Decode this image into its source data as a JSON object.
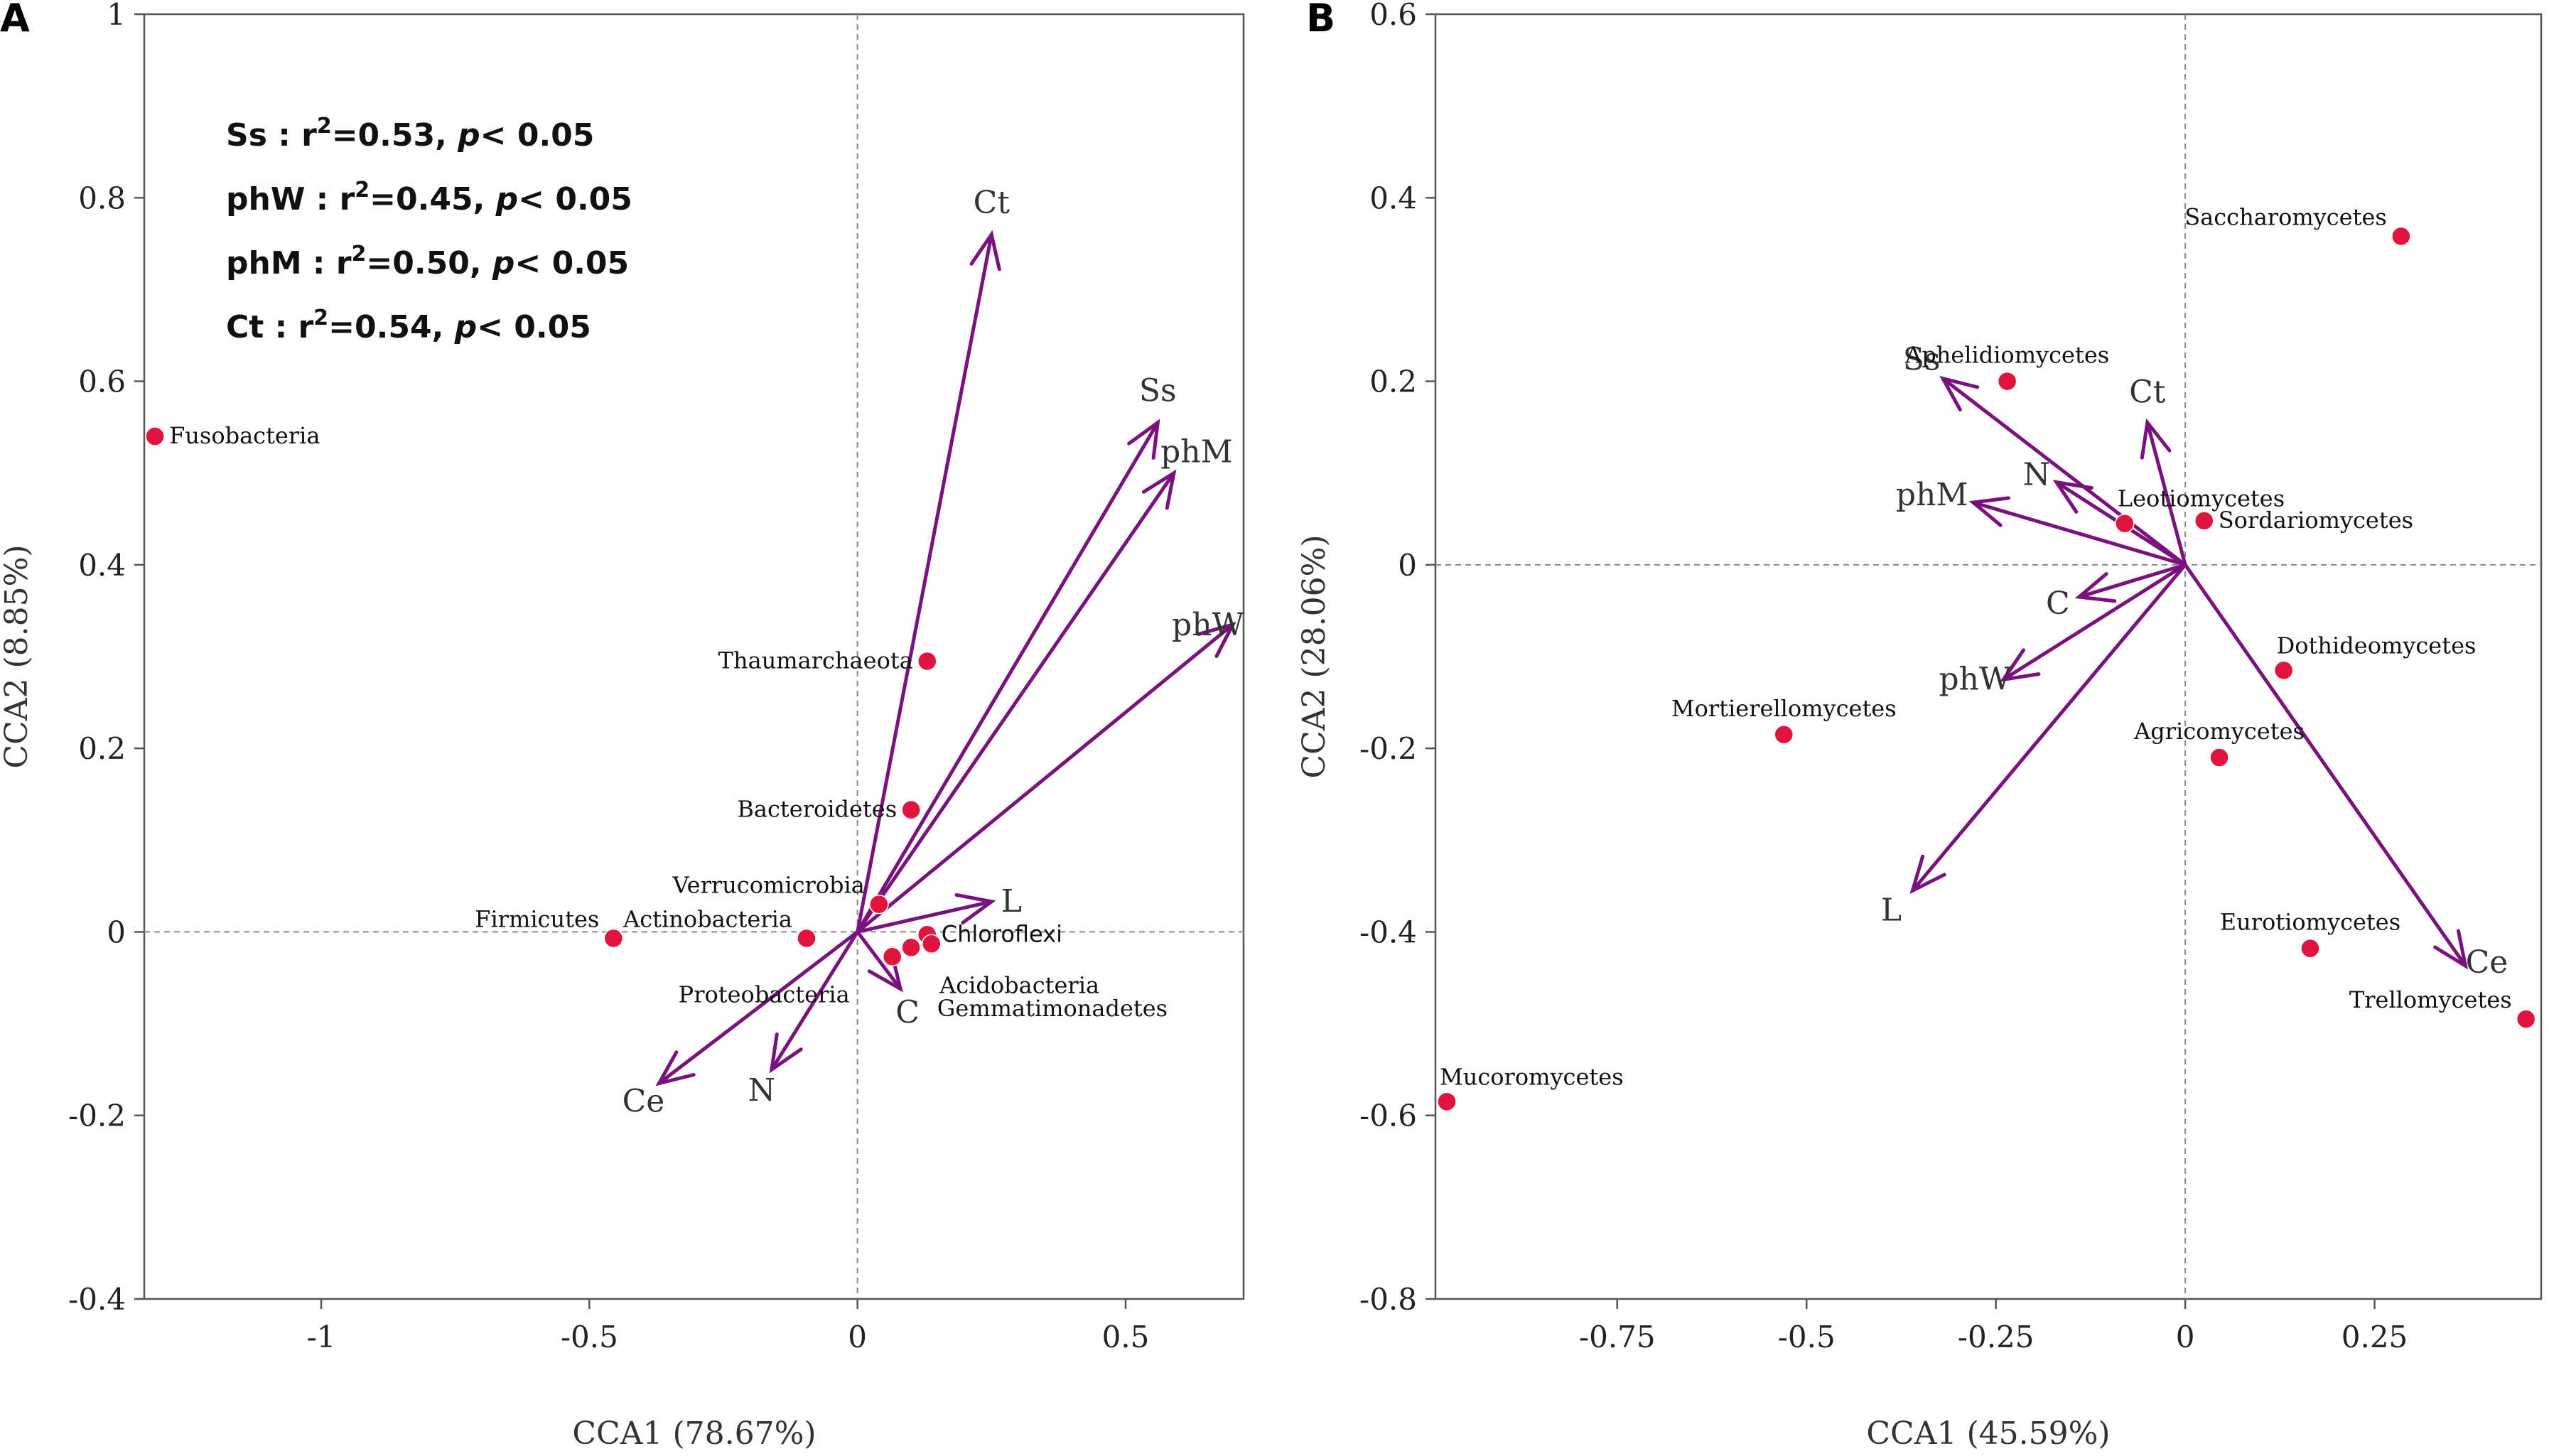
{
  "chart_data": [
    {
      "panel": "A",
      "type": "scatter",
      "subtype": "CCA biplot",
      "xlabel": "CCA1 (78.67%)",
      "ylabel": "CCA2 (8.85%)",
      "xlim": [
        -1.33,
        0.72
      ],
      "ylim": [
        -0.4,
        1.0
      ],
      "xticks": [
        -1,
        -0.5,
        0,
        0.5
      ],
      "xtick_labels": [
        "-1",
        "-0.5",
        "0",
        "0.5"
      ],
      "yticks": [
        -0.4,
        -0.2,
        0,
        0.2,
        0.4,
        0.6,
        0.8,
        1
      ],
      "ytick_labels": [
        "-0.4",
        "-0.2",
        "0",
        "0.2",
        "0.4",
        "0.6",
        "0.8",
        "1"
      ],
      "points": [
        {
          "label": "Fusobacteria",
          "x": -1.31,
          "y": 0.54,
          "anchor": "right"
        },
        {
          "label": "Thaumarchaeota",
          "x": 0.13,
          "y": 0.295,
          "anchor": "left"
        },
        {
          "label": "Bacteroidetes",
          "x": 0.1,
          "y": 0.133,
          "anchor": "left"
        },
        {
          "label": "Verrucomicrobia",
          "x": 0.04,
          "y": 0.03,
          "anchor": "above-left"
        },
        {
          "label": "Actinobacteria",
          "x": -0.095,
          "y": -0.007,
          "anchor": "above-left"
        },
        {
          "label": "Firmicutes",
          "x": -0.455,
          "y": -0.007,
          "anchor": "above-left"
        },
        {
          "label": "Proteobacteria",
          "x": 0.065,
          "y": -0.027,
          "anchor": "below-left"
        },
        {
          "label": "Chloroflexi",
          "x": 0.13,
          "y": -0.003,
          "anchor": "right"
        },
        {
          "label": "Acidobacteria",
          "x": 0.1,
          "y": -0.017,
          "anchor": "below-right"
        },
        {
          "label": "Gemmatimonadetes",
          "x": 0.138,
          "y": -0.013,
          "anchor": "below-right2"
        }
      ],
      "vectors": [
        {
          "label": "Ct",
          "x": 0.25,
          "y": 0.76
        },
        {
          "label": "Ss",
          "x": 0.56,
          "y": 0.555
        },
        {
          "label": "phM",
          "x": 0.59,
          "y": 0.5
        },
        {
          "label": "phW",
          "x": 0.7,
          "y": 0.335
        },
        {
          "label": "L",
          "x": 0.25,
          "y": 0.033
        },
        {
          "label": "C",
          "x": 0.08,
          "y": -0.062
        },
        {
          "label": "N",
          "x": -0.16,
          "y": -0.15
        },
        {
          "label": "Ce",
          "x": -0.37,
          "y": -0.165
        }
      ],
      "annotations": [
        {
          "name": "Ss",
          "r2": "0.53",
          "p": "0.05"
        },
        {
          "name": "phW",
          "r2": "0.45",
          "p": "0.05"
        },
        {
          "name": "phM",
          "r2": "0.50",
          "p": "0.05"
        },
        {
          "name": "Ct",
          "r2": "0.54",
          "p": "0.05"
        }
      ]
    },
    {
      "panel": "B",
      "type": "scatter",
      "subtype": "CCA biplot",
      "xlabel": "CCA1 (45.59%)",
      "ylabel": "CCA2 (28.06%)",
      "xlim": [
        -0.99,
        0.47
      ],
      "ylim": [
        -0.8,
        0.6
      ],
      "xticks": [
        -0.75,
        -0.5,
        -0.25,
        0,
        0.25
      ],
      "xtick_labels": [
        "-0.75",
        "-0.5",
        "-0.25",
        "0",
        "0.25"
      ],
      "yticks": [
        -0.8,
        -0.6,
        -0.4,
        -0.2,
        0,
        0.2,
        0.4,
        0.6
      ],
      "ytick_labels": [
        "-0.8",
        "-0.6",
        "-0.4",
        "-0.2",
        "0",
        "0.2",
        "0.4",
        "0.6"
      ],
      "points": [
        {
          "label": "Saccharomycetes",
          "x": 0.285,
          "y": 0.358,
          "anchor": "above-left"
        },
        {
          "label": "Aphelidiomycetes",
          "x": -0.235,
          "y": 0.2,
          "anchor": "above-center"
        },
        {
          "label": "Leotiomycetes",
          "x": -0.08,
          "y": 0.045,
          "anchor": "above-right"
        },
        {
          "label": "Sordariomycetes",
          "x": 0.025,
          "y": 0.048,
          "anchor": "right"
        },
        {
          "label": "Dothideomycetes",
          "x": 0.13,
          "y": -0.115,
          "anchor": "above-right"
        },
        {
          "label": "Mortierellomycetes",
          "x": -0.53,
          "y": -0.185,
          "anchor": "above-center"
        },
        {
          "label": "Agricomycetes",
          "x": 0.045,
          "y": -0.21,
          "anchor": "above-center"
        },
        {
          "label": "Eurotiomycetes",
          "x": 0.165,
          "y": -0.418,
          "anchor": "above-center"
        },
        {
          "label": "Trellomycetes",
          "x": 0.45,
          "y": -0.495,
          "anchor": "above-left"
        },
        {
          "label": "Mucoromycetes",
          "x": -0.975,
          "y": -0.585,
          "anchor": "above-right"
        }
      ],
      "vectors": [
        {
          "label": "Ss",
          "x": -0.32,
          "y": 0.203
        },
        {
          "label": "Ct",
          "x": -0.05,
          "y": 0.155
        },
        {
          "label": "N",
          "x": -0.17,
          "y": 0.09
        },
        {
          "label": "phM",
          "x": -0.28,
          "y": 0.068
        },
        {
          "label": "C",
          "x": -0.14,
          "y": -0.035
        },
        {
          "label": "phW",
          "x": -0.24,
          "y": -0.125
        },
        {
          "label": "L",
          "x": -0.36,
          "y": -0.355
        },
        {
          "label": "Ce",
          "x": 0.37,
          "y": -0.437
        }
      ]
    }
  ]
}
